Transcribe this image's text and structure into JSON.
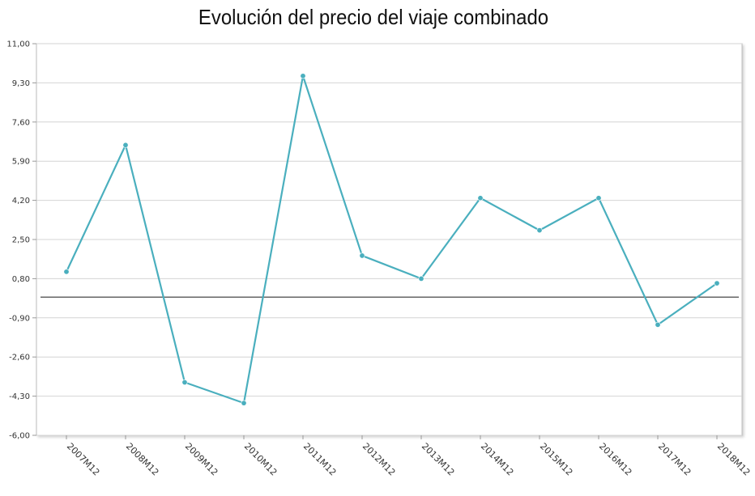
{
  "chart_data": {
    "type": "line",
    "title": "Evolución del precio del viaje combinado",
    "xlabel": "",
    "ylabel": "",
    "categories": [
      "2007M12",
      "2008M12",
      "2009M12",
      "2010M12",
      "2011M12",
      "2012M12",
      "2013M12",
      "2014M12",
      "2015M12",
      "2016M12",
      "2017M12",
      "2018M12"
    ],
    "series": [
      {
        "values": [
          1.1,
          6.6,
          -3.7,
          -4.6,
          9.6,
          1.8,
          0.8,
          4.3,
          2.9,
          4.3,
          -1.2,
          0.6
        ]
      }
    ],
    "yticks": [
      "11,00",
      "9,30",
      "7,60",
      "5,90",
      "4,20",
      "2,50",
      "0,80",
      "-0,90",
      "-2,60",
      "-4,30",
      "-6,00"
    ],
    "ylim": [
      -6.0,
      11.0
    ],
    "ytick_step": 1.7,
    "reference_line": 0,
    "grid": true,
    "legend": "none",
    "colors": {
      "series": "#4aafbe",
      "grid": "#d4d4d4",
      "reference": "#333333",
      "frame": "#bbbbbb"
    }
  }
}
